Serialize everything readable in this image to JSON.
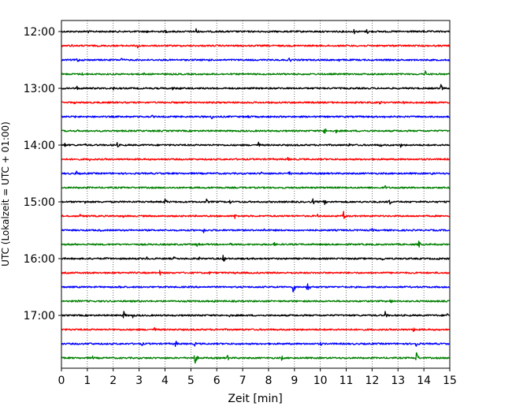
{
  "chart_data": {
    "type": "line",
    "title": "",
    "xlabel": "Zeit  [min]",
    "ylabel": "UTC (Lokalzeit = UTC + 01:00)",
    "xlim": [
      0,
      15
    ],
    "x_ticks": [
      0,
      1,
      2,
      3,
      4,
      5,
      6,
      7,
      8,
      9,
      10,
      11,
      12,
      13,
      14,
      15
    ],
    "x_tick_labels": [
      "0",
      "1",
      "2",
      "3",
      "4",
      "5",
      "6",
      "7",
      "8",
      "9",
      "10",
      "11",
      "12",
      "13",
      "14",
      "15"
    ],
    "y_tick_labels": [
      "12:00",
      "13:00",
      "14:00",
      "15:00",
      "16:00",
      "17:00"
    ],
    "y_tick_rows": [
      0,
      4,
      8,
      12,
      16,
      20
    ],
    "grid": "vertical-dotted",
    "trace_interval_minutes": 15,
    "trace_colors": [
      "#000000",
      "#ff0000",
      "#0000ff",
      "#008000"
    ],
    "series": [
      {
        "start": "12:00",
        "color": "#000000",
        "events": [
          [
            1.0,
            0.3
          ],
          [
            3.3,
            0.25
          ],
          [
            4.0,
            0.3
          ],
          [
            5.2,
            0.45
          ],
          [
            11.3,
            0.35
          ],
          [
            11.8,
            0.4
          ],
          [
            14.0,
            0.25
          ]
        ]
      },
      {
        "start": "12:15",
        "color": "#ff0000",
        "events": [
          [
            0.4,
            0.2
          ],
          [
            2.95,
            0.6
          ],
          [
            6.0,
            0.15
          ]
        ]
      },
      {
        "start": "12:30",
        "color": "#0000ff",
        "events": [
          [
            0.6,
            0.45
          ],
          [
            2.3,
            0.35
          ],
          [
            5.7,
            0.2
          ],
          [
            8.8,
            0.4
          ],
          [
            10.7,
            0.3
          ]
        ]
      },
      {
        "start": "12:45",
        "color": "#008000",
        "events": [
          [
            0.8,
            0.2
          ],
          [
            3.2,
            0.25
          ],
          [
            8.3,
            0.2
          ],
          [
            14.05,
            0.5
          ]
        ]
      },
      {
        "start": "13:00",
        "color": "#000000",
        "events": [
          [
            0.6,
            0.3
          ],
          [
            2.0,
            0.25
          ],
          [
            4.3,
            0.35
          ],
          [
            4.55,
            0.3
          ],
          [
            6.0,
            0.25
          ],
          [
            8.5,
            0.2
          ],
          [
            14.65,
            0.55
          ]
        ]
      },
      {
        "start": "13:15",
        "color": "#ff0000",
        "events": [
          [
            0.5,
            0.2
          ],
          [
            12.3,
            0.35
          ],
          [
            13.2,
            0.25
          ]
        ]
      },
      {
        "start": "13:30",
        "color": "#0000ff",
        "events": [
          [
            0.5,
            0.2
          ],
          [
            3.5,
            0.2
          ],
          [
            5.8,
            0.35
          ],
          [
            7.2,
            0.45
          ],
          [
            12.5,
            0.3
          ]
        ]
      },
      {
        "start": "13:45",
        "color": "#008000",
        "events": [
          [
            0.6,
            0.2
          ],
          [
            10.15,
            0.6
          ],
          [
            10.6,
            0.3
          ],
          [
            11.7,
            0.2
          ]
        ]
      },
      {
        "start": "14:00",
        "color": "#000000",
        "events": [
          [
            0.1,
            0.4
          ],
          [
            0.9,
            0.25
          ],
          [
            2.15,
            0.35
          ],
          [
            7.6,
            0.45
          ],
          [
            11.1,
            0.3
          ],
          [
            12.3,
            0.35
          ],
          [
            13.1,
            0.3
          ]
        ]
      },
      {
        "start": "14:15",
        "color": "#ff0000",
        "events": [
          [
            1.1,
            0.25
          ],
          [
            8.75,
            0.3
          ],
          [
            12.5,
            0.2
          ]
        ]
      },
      {
        "start": "14:30",
        "color": "#0000ff",
        "events": [
          [
            0.55,
            0.45
          ],
          [
            3.8,
            0.2
          ],
          [
            7.7,
            0.3
          ],
          [
            8.8,
            0.4
          ],
          [
            14.3,
            0.3
          ]
        ]
      },
      {
        "start": "14:45",
        "color": "#008000",
        "events": [
          [
            5.8,
            0.2
          ],
          [
            9.0,
            0.25
          ],
          [
            12.5,
            0.3
          ]
        ]
      },
      {
        "start": "15:00",
        "color": "#000000",
        "events": [
          [
            0.9,
            0.3
          ],
          [
            4.0,
            0.5
          ],
          [
            5.6,
            0.35
          ],
          [
            6.5,
            0.3
          ],
          [
            9.7,
            0.45
          ],
          [
            10.15,
            0.45
          ],
          [
            12.65,
            0.55
          ]
        ]
      },
      {
        "start": "15:15",
        "color": "#ff0000",
        "events": [
          [
            0.7,
            0.3
          ],
          [
            2.4,
            0.25
          ],
          [
            6.7,
            0.35
          ],
          [
            9.9,
            0.3
          ],
          [
            10.9,
            0.65
          ]
        ]
      },
      {
        "start": "15:30",
        "color": "#0000ff",
        "events": [
          [
            1.5,
            0.2
          ],
          [
            5.5,
            0.45
          ],
          [
            7.8,
            0.3
          ],
          [
            9.5,
            0.3
          ],
          [
            12.0,
            0.25
          ]
        ]
      },
      {
        "start": "15:45",
        "color": "#008000",
        "events": [
          [
            0.5,
            0.2
          ],
          [
            5.25,
            0.45
          ],
          [
            6.5,
            0.25
          ],
          [
            8.2,
            0.35
          ],
          [
            13.8,
            0.5
          ]
        ]
      },
      {
        "start": "16:00",
        "color": "#000000",
        "events": [
          [
            1.7,
            0.3
          ],
          [
            3.3,
            0.3
          ],
          [
            4.35,
            0.3
          ],
          [
            5.3,
            0.3
          ],
          [
            6.25,
            0.55
          ],
          [
            7.8,
            0.25
          ],
          [
            12.4,
            0.3
          ],
          [
            14.6,
            0.35
          ]
        ]
      },
      {
        "start": "16:15",
        "color": "#ff0000",
        "events": [
          [
            3.8,
            0.35
          ],
          [
            5.7,
            0.25
          ],
          [
            6.7,
            0.2
          ]
        ]
      },
      {
        "start": "16:30",
        "color": "#0000ff",
        "events": [
          [
            2.25,
            0.4
          ],
          [
            8.95,
            0.75
          ],
          [
            9.5,
            0.9
          ]
        ]
      },
      {
        "start": "16:45",
        "color": "#008000",
        "events": [
          [
            0.65,
            0.2
          ],
          [
            5.9,
            0.2
          ],
          [
            12.7,
            0.35
          ]
        ]
      },
      {
        "start": "17:00",
        "color": "#000000",
        "events": [
          [
            2.4,
            0.55
          ],
          [
            2.75,
            0.35
          ],
          [
            5.3,
            0.25
          ],
          [
            6.5,
            0.3
          ],
          [
            12.5,
            0.5
          ],
          [
            14.9,
            0.3
          ]
        ]
      },
      {
        "start": "17:15",
        "color": "#ff0000",
        "events": [
          [
            3.6,
            0.3
          ],
          [
            6.0,
            0.25
          ],
          [
            13.6,
            0.4
          ]
        ]
      },
      {
        "start": "17:30",
        "color": "#0000ff",
        "events": [
          [
            1.1,
            0.3
          ],
          [
            3.1,
            0.3
          ],
          [
            4.4,
            0.5
          ],
          [
            5.15,
            0.3
          ],
          [
            10.0,
            0.3
          ],
          [
            13.7,
            0.5
          ]
        ]
      },
      {
        "start": "17:45",
        "color": "#008000",
        "events": [
          [
            1.2,
            0.25
          ],
          [
            5.15,
            0.9
          ],
          [
            6.4,
            0.4
          ],
          [
            8.5,
            0.35
          ],
          [
            13.7,
            0.9
          ]
        ]
      }
    ]
  }
}
